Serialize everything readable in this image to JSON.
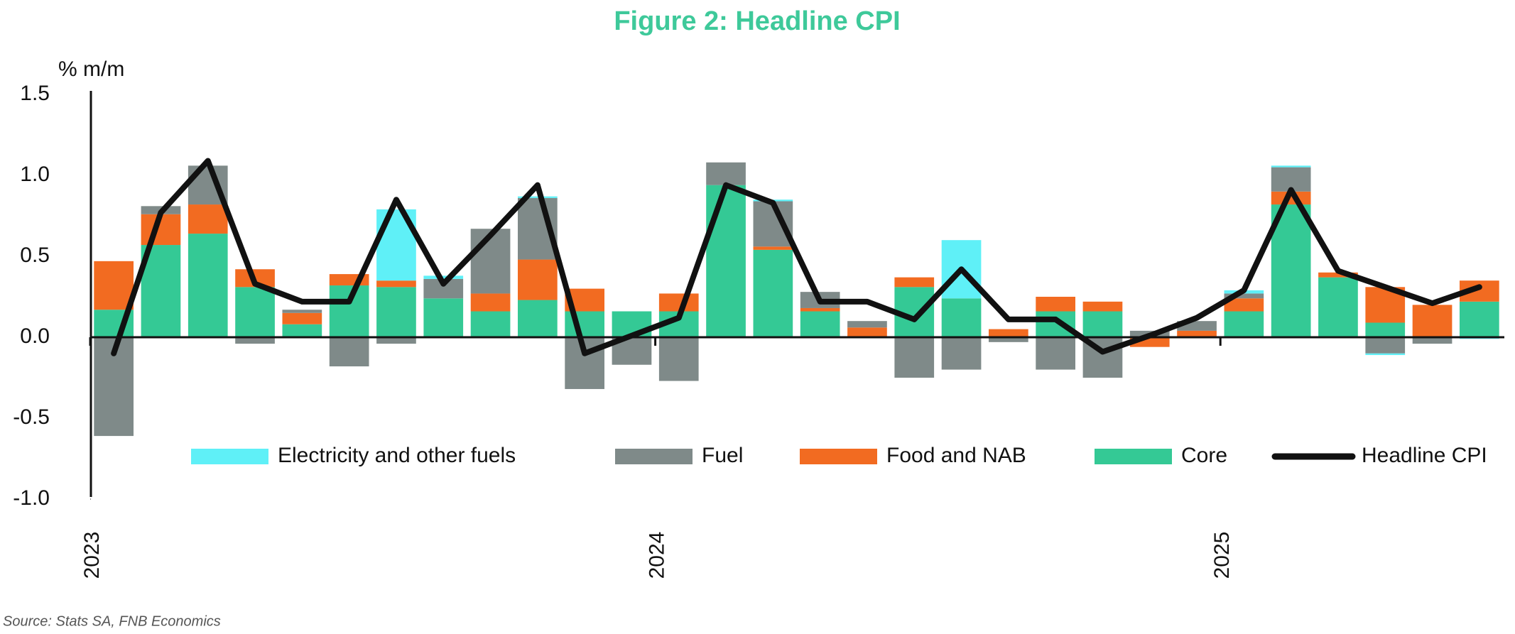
{
  "chart_data": {
    "type": "bar",
    "stacked": true,
    "title": "Figure 2: Headline CPI",
    "y_label": "% m/m",
    "source": "Source: Stats SA, FNB Economics",
    "categories": [
      "2023",
      null,
      null,
      null,
      null,
      null,
      null,
      null,
      null,
      null,
      null,
      null,
      "2024",
      null,
      null,
      null,
      null,
      null,
      null,
      null,
      null,
      null,
      null,
      null,
      "2025",
      null,
      null,
      null,
      null,
      null
    ],
    "ylim": [
      -1,
      1.5
    ],
    "yticks": [
      {
        "value": -1,
        "label": "-1.0"
      },
      -0.5,
      {
        "value": 0,
        "label": "0.0"
      },
      0.5,
      {
        "value": 1,
        "label": "1.0"
      },
      1.5
    ],
    "legend": "bottom",
    "series": [
      {
        "name": "Core",
        "color": "#34c995",
        "values": [
          0.17,
          0.57,
          0.64,
          0.31,
          0.08,
          0.32,
          0.31,
          0.24,
          0.16,
          0.23,
          0.16,
          0.16,
          0.16,
          0.94,
          0.54,
          0.16,
          0,
          0.31,
          0.24,
          0,
          0.16,
          0.16,
          0,
          0,
          0.16,
          0.82,
          0.37,
          0.09,
          0,
          0.22
        ]
      },
      {
        "name": "Food and NAB",
        "color": "#f26b21",
        "values": [
          0.3,
          0.19,
          0.18,
          0.11,
          0.07,
          0.07,
          0.04,
          0,
          0.11,
          0.25,
          0.14,
          0,
          0.11,
          0,
          0.02,
          0.02,
          0.06,
          0.06,
          0,
          0.05,
          0.09,
          0.06,
          -0.06,
          0.04,
          0.08,
          0.08,
          0.03,
          0.22,
          0.2,
          0.13
        ]
      },
      {
        "name": "Fuel",
        "color": "#7f8a89",
        "values": [
          -0.61,
          0.05,
          0.24,
          -0.04,
          0.02,
          -0.18,
          -0.04,
          0.12,
          0.4,
          0.38,
          -0.32,
          -0.17,
          -0.27,
          0.14,
          0.28,
          0.1,
          0.04,
          -0.25,
          -0.2,
          -0.03,
          -0.2,
          -0.25,
          0.04,
          0.06,
          0.03,
          0.15,
          0,
          -0.1,
          -0.04,
          0
        ]
      },
      {
        "name": "Electricity and other fuels",
        "color": "#5ff0f7",
        "values": [
          0,
          0,
          0,
          0,
          0,
          0,
          0.44,
          0.02,
          0,
          0.01,
          0,
          0,
          0,
          0,
          0.01,
          0,
          0,
          0,
          0.36,
          0,
          0,
          0,
          0,
          0,
          0.02,
          0.01,
          0,
          -0.01,
          0,
          -0.01
        ]
      },
      {
        "name": "Headline CPI",
        "type": "line",
        "color": "#111111",
        "values": [
          -0.1,
          0.77,
          1.09,
          0.33,
          0.22,
          0.22,
          0.85,
          0.33,
          0.63,
          0.94,
          -0.1,
          0.01,
          0.12,
          0.94,
          0.83,
          0.22,
          0.22,
          0.11,
          0.42,
          0.11,
          0.11,
          -0.09,
          0.01,
          0.12,
          0.29,
          0.91,
          0.41,
          0.31,
          0.21,
          0.31
        ]
      }
    ]
  }
}
